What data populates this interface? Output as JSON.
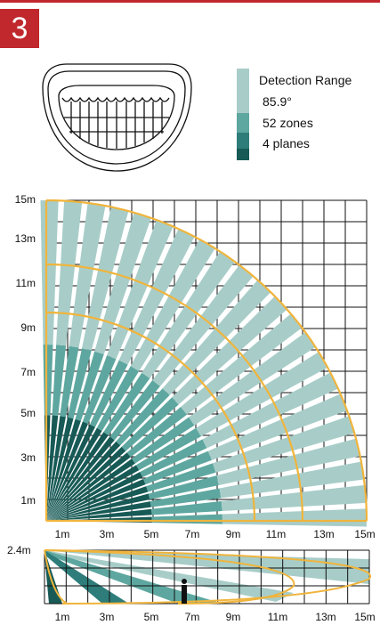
{
  "header": {
    "step_number": "3"
  },
  "legend": {
    "title": "Detection Range",
    "angle": "85.9°",
    "zones": "52 zones",
    "planes": "4 planes",
    "colors": [
      "#a8cdc9",
      "#5ea7a0",
      "#2e7d7a",
      "#175a56"
    ]
  },
  "colors": {
    "accent_red": "#c0282d",
    "range_arc": "#f0b43c",
    "beam_light": "#a8cdc9",
    "beam_mid": "#5ea7a0",
    "beam_dark": "#2e7d7a",
    "beam_darkest": "#175a56",
    "grid": "#111111"
  },
  "top_view": {
    "y_axis_labels": [
      "15m",
      "13m",
      "11m",
      "9m",
      "7m",
      "5m",
      "3m",
      "1m"
    ],
    "x_axis_labels": [
      "1m",
      "3m",
      "5m",
      "7m",
      "9m",
      "11m",
      "13m",
      "15m"
    ]
  },
  "side_view": {
    "height_label": "2.4m",
    "x_axis_labels": [
      "1m",
      "3m",
      "5m",
      "7m",
      "9m",
      "11m",
      "13m",
      "15m"
    ]
  }
}
